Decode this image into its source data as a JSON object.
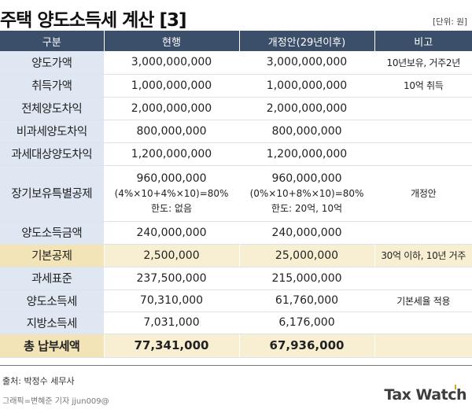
{
  "title": "주택 양도소득세 계산 [3]",
  "unit": "[단위: 원]",
  "columns": [
    "구분",
    "현행",
    "개정안(29년이후)",
    "비고"
  ],
  "rows": [
    {
      "label": "양도가액",
      "current": "3,000,000,000",
      "revised": "3,000,000,000",
      "note": "10년보유, 거주2년"
    },
    {
      "label": "취득가액",
      "current": "1,000,000,000",
      "revised": "1,000,000,000",
      "note": "10억 취득"
    },
    {
      "label": "전체양도차익",
      "current": "2,000,000,000",
      "revised": "2,000,000,000",
      "note": ""
    },
    {
      "label": "비과세양도차익",
      "current": "800,000,000",
      "revised": "800,000,000",
      "note": ""
    },
    {
      "label": "과세대상양도차익",
      "current": "1,200,000,000",
      "revised": "1,200,000,000",
      "note": ""
    },
    {
      "label": "장기보유특별공제",
      "current": "960,000,000",
      "current_formula": "(4%×10+4%×10)=80%",
      "current_limit": "한도: 없음",
      "revised": "960,000,000",
      "revised_formula": "(0%×10+8%×10)=80%",
      "revised_limit": "한도: 20억, 10억",
      "note": "개정안"
    },
    {
      "label": "양도소득금액",
      "current": "240,000,000",
      "revised": "240,000,000",
      "note": ""
    },
    {
      "label": "기본공제",
      "current": "2,500,000",
      "revised": "25,000,000",
      "note": "30억 이하, 10년 거주"
    },
    {
      "label": "과세표준",
      "current": "237,500,000",
      "revised": "215,000,000",
      "note": ""
    },
    {
      "label": "양도소득세",
      "current": "70,310,000",
      "revised": "61,760,000",
      "note": "기본세율 적용"
    },
    {
      "label": "지방소득세",
      "current": "7,031,000",
      "revised": "6,176,000",
      "note": ""
    },
    {
      "label": "총 납부세액",
      "current": "77,341,000",
      "revised": "67,936,000",
      "note": ""
    }
  ],
  "footer": {
    "source": "출처: 박정수 세무사",
    "credit": "그래픽=변혜준 기자 jjun009@",
    "logo": "Tax Watch"
  },
  "colors": {
    "header": "#3b4f6b",
    "label_bg": "#dfe7f2",
    "highlight": "#f8efd3",
    "logo_text": "#3d3d3d",
    "logo_accent": "#d9a521"
  }
}
